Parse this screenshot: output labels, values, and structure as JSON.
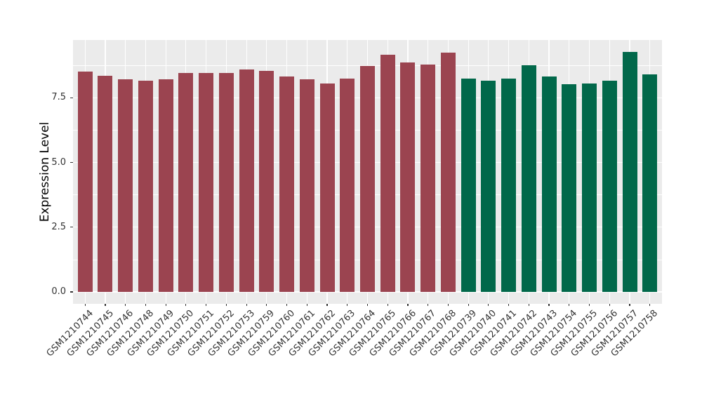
{
  "chart_data": {
    "type": "bar",
    "title": "",
    "xlabel": "",
    "ylabel": "Expression Level",
    "ylim": [
      -0.46,
      9.73
    ],
    "ytick_values": [
      0,
      2.5,
      5,
      7.5
    ],
    "ytick_labels": [
      "0.0",
      "2.5",
      "5.0",
      "7.5"
    ],
    "yminor_values": [
      1.25,
      3.75,
      6.25,
      8.75
    ],
    "grid": "on",
    "legend": "none",
    "panel_bg": "#EBEBEB",
    "grid_color": "#FFFFFF",
    "tick_color": "#333333",
    "axis_text_color": "#333333",
    "axis_title_color": "#000000",
    "group_colors": {
      "group1": "#9B4450",
      "group2": "#01684A"
    },
    "bars": [
      {
        "label": "GSM1210744",
        "value": 8.51,
        "group": "group1"
      },
      {
        "label": "GSM1210745",
        "value": 8.34,
        "group": "group1"
      },
      {
        "label": "GSM1210746",
        "value": 8.22,
        "group": "group1"
      },
      {
        "label": "GSM1210748",
        "value": 8.15,
        "group": "group1"
      },
      {
        "label": "GSM1210749",
        "value": 8.22,
        "group": "group1"
      },
      {
        "label": "GSM1210750",
        "value": 8.46,
        "group": "group1"
      },
      {
        "label": "GSM1210751",
        "value": 8.45,
        "group": "group1"
      },
      {
        "label": "GSM1210752",
        "value": 8.47,
        "group": "group1"
      },
      {
        "label": "GSM1210753",
        "value": 8.58,
        "group": "group1"
      },
      {
        "label": "GSM1210759",
        "value": 8.55,
        "group": "group1"
      },
      {
        "label": "GSM1210760",
        "value": 8.33,
        "group": "group1"
      },
      {
        "label": "GSM1210761",
        "value": 8.22,
        "group": "group1"
      },
      {
        "label": "GSM1210762",
        "value": 8.05,
        "group": "group1"
      },
      {
        "label": "GSM1210763",
        "value": 8.25,
        "group": "group1"
      },
      {
        "label": "GSM1210764",
        "value": 8.72,
        "group": "group1"
      },
      {
        "label": "GSM1210765",
        "value": 9.15,
        "group": "group1"
      },
      {
        "label": "GSM1210766",
        "value": 8.86,
        "group": "group1"
      },
      {
        "label": "GSM1210767",
        "value": 8.79,
        "group": "group1"
      },
      {
        "label": "GSM1210768",
        "value": 9.23,
        "group": "group1"
      },
      {
        "label": "GSM1210739",
        "value": 8.25,
        "group": "group2"
      },
      {
        "label": "GSM1210740",
        "value": 8.17,
        "group": "group2"
      },
      {
        "label": "GSM1210741",
        "value": 8.25,
        "group": "group2"
      },
      {
        "label": "GSM1210742",
        "value": 8.75,
        "group": "group2"
      },
      {
        "label": "GSM1210743",
        "value": 8.31,
        "group": "group2"
      },
      {
        "label": "GSM1210754",
        "value": 8.01,
        "group": "group2"
      },
      {
        "label": "GSM1210755",
        "value": 8.06,
        "group": "group2"
      },
      {
        "label": "GSM1210756",
        "value": 8.16,
        "group": "group2"
      },
      {
        "label": "GSM1210757",
        "value": 9.27,
        "group": "group2"
      },
      {
        "label": "GSM1210758",
        "value": 8.41,
        "group": "group2"
      }
    ]
  }
}
